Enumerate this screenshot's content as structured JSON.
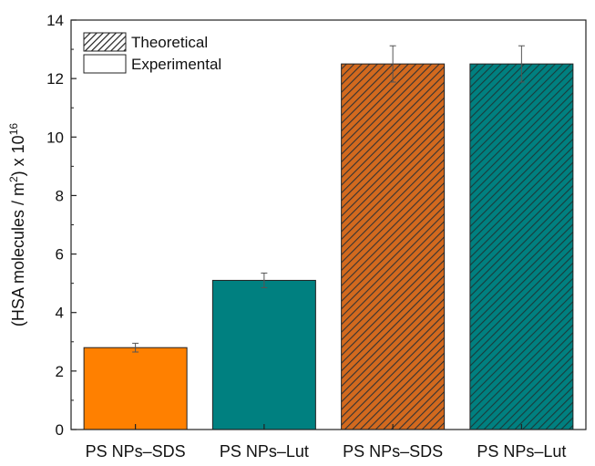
{
  "chart_data": {
    "type": "bar",
    "categories": [
      "PS NPs–SDS",
      "PS NPs–Lut",
      "PS NPs–SDS",
      "PS NPs–Lut"
    ],
    "values": [
      2.8,
      5.1,
      12.5,
      12.5
    ],
    "errors": [
      0.15,
      0.25,
      0.62,
      0.62
    ],
    "bar_fill": [
      "solid",
      "solid",
      "hatched",
      "hatched"
    ],
    "colors": [
      "#ff8000",
      "#008080",
      "#d2691e",
      "#008080"
    ],
    "title": "",
    "xlabel": "",
    "ylabel_parts": {
      "pre": "(HSA molecules / m",
      "exp1": "2",
      "mid": ") x 10",
      "exp2": "16"
    },
    "ylim": [
      0,
      14
    ],
    "yticks": [
      0,
      2,
      4,
      6,
      8,
      10,
      12,
      14
    ],
    "grid": false,
    "legend": {
      "position": "top-left",
      "entries": [
        {
          "label": "Theoretical",
          "fill": "hatched"
        },
        {
          "label": "Experimental",
          "fill": "solid"
        }
      ]
    }
  }
}
